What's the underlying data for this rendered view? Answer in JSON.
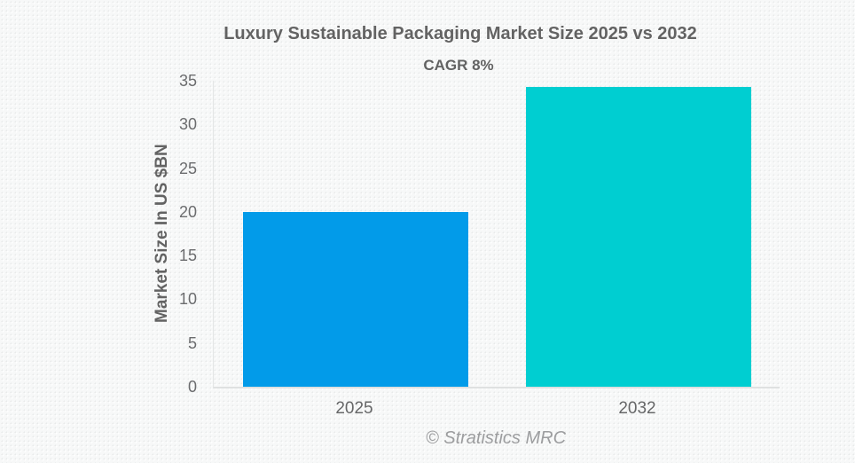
{
  "chart": {
    "title": "Luxury Sustainable Packaging Market Size 2025 vs 2032",
    "subtitle": "CAGR 8%",
    "ylabel": "Market Size In US $BN",
    "source": "© Stratistics MRC"
  },
  "chart_data": {
    "type": "bar",
    "title": "Luxury Sustainable Packaging Market Size 2025 vs 2032",
    "subtitle": "CAGR 8%",
    "categories": [
      "2025",
      "2032"
    ],
    "values": [
      20,
      34.3
    ],
    "bar_colors": [
      "#029be9",
      "#00ced1"
    ],
    "xlabel": "",
    "ylabel": "Market Size In US $BN",
    "ylim": [
      0,
      35
    ],
    "yticks": [
      0,
      5,
      10,
      15,
      20,
      25,
      30,
      35
    ],
    "grid": false,
    "legend": false,
    "annotation": "CAGR 8%",
    "source": "© Stratistics MRC"
  },
  "colors": {
    "bar_2025": "#029be9",
    "bar_2032": "#00ced1",
    "heading_text": "#636363",
    "tick_text": "#6b6c6e",
    "footer_text": "#9c9d9f",
    "axis_line": "#e4e6e6",
    "baseline": "#dfe1e1",
    "background": "#f7f8f8"
  }
}
